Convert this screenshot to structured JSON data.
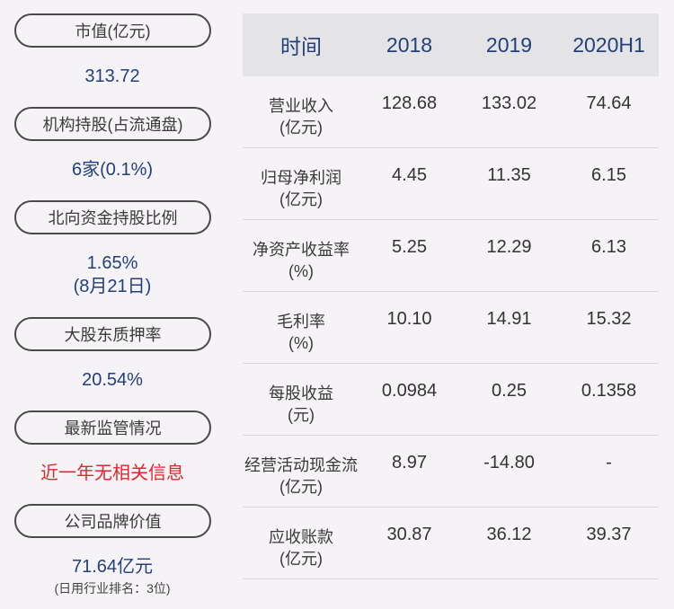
{
  "left_metrics": [
    {
      "label": "市值(亿元)",
      "value": "313.72"
    },
    {
      "label": "机构持股(占流通盘)",
      "value": "6家(0.1%)"
    },
    {
      "label": "北向资金持股比例",
      "value_line1": "1.65%",
      "value_line2": "(8月21日)"
    },
    {
      "label": "大股东质押率",
      "value": "20.54%"
    },
    {
      "label": "最新监管情况",
      "value": "近一年无相关信息"
    },
    {
      "label": "公司品牌价值",
      "value": "71.64亿元",
      "sub": "(日用行业排名：3位)"
    }
  ],
  "table": {
    "headers": [
      "时间",
      "2018",
      "2019",
      "2020H1"
    ],
    "rows": [
      {
        "label1": "营业收入",
        "label2": "(亿元)",
        "values": [
          "128.68",
          "133.02",
          "74.64"
        ]
      },
      {
        "label1": "归母净利润",
        "label2": "(亿元)",
        "values": [
          "4.45",
          "11.35",
          "6.15"
        ]
      },
      {
        "label1": "净资产收益率",
        "label2": "(%)",
        "values": [
          "5.25",
          "12.29",
          "6.13"
        ]
      },
      {
        "label1": "毛利率",
        "label2": "(%)",
        "values": [
          "10.10",
          "14.91",
          "15.32"
        ]
      },
      {
        "label1": "每股收益",
        "label2": "(元)",
        "values": [
          "0.0984",
          "0.25",
          "0.1358"
        ]
      },
      {
        "label1": "经营活动现金流",
        "label2": "(亿元)",
        "values": [
          "8.97",
          "-14.80",
          "-"
        ]
      },
      {
        "label1": "应收账款",
        "label2": "(亿元)",
        "values": [
          "30.87",
          "36.12",
          "39.37"
        ]
      }
    ]
  },
  "colors": {
    "background": "#f5f3f5",
    "value_blue": "#23407a",
    "alert_red": "#e0262f",
    "header_bg": "#e4e3e6"
  }
}
